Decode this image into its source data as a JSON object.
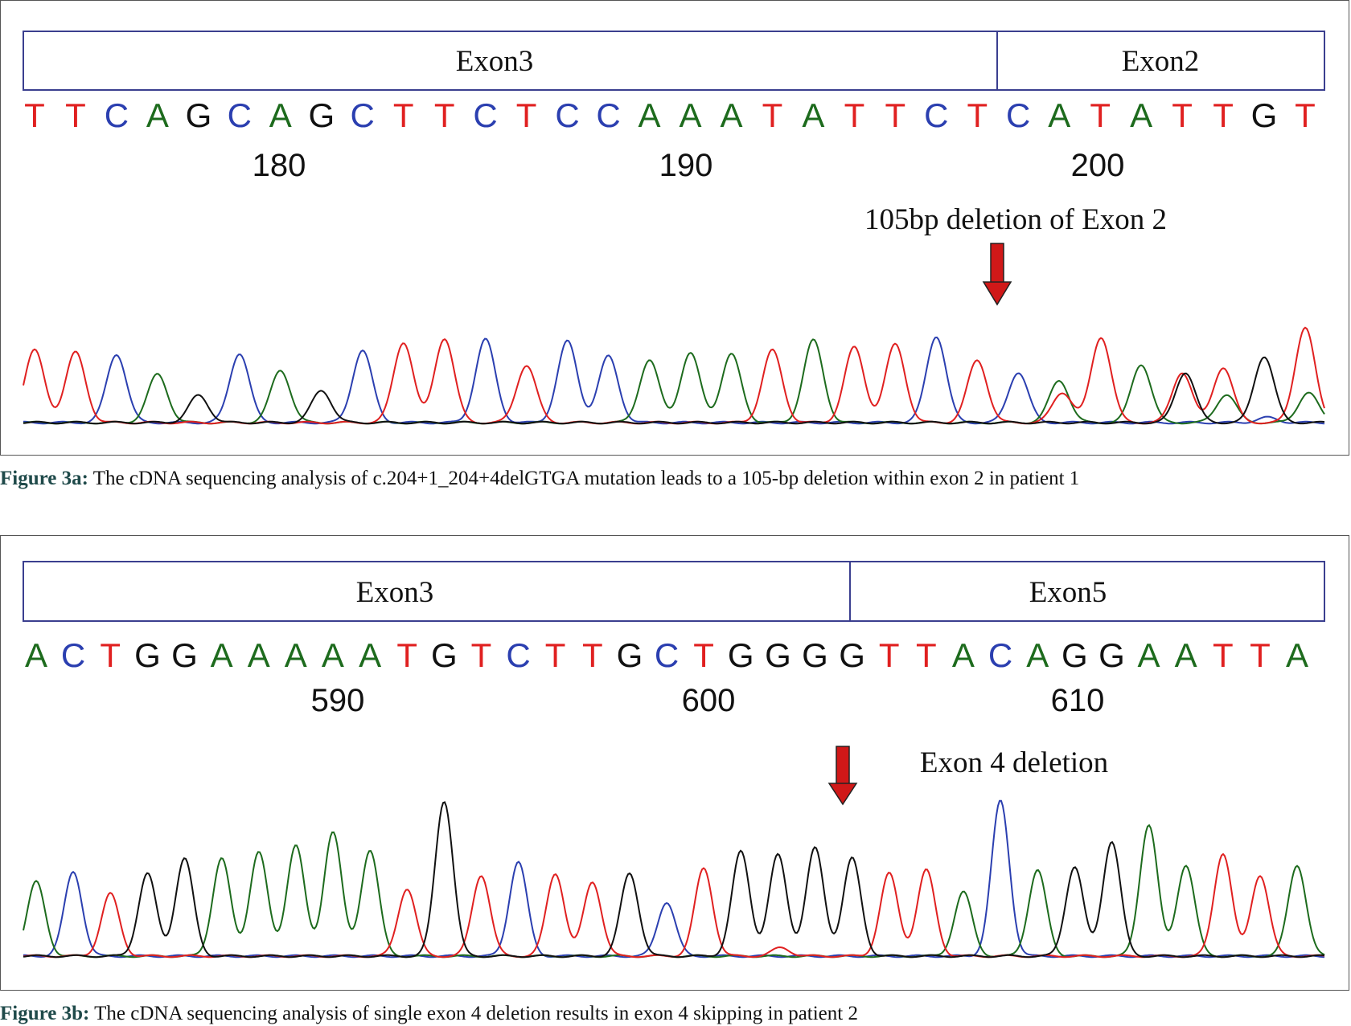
{
  "colors": {
    "A": "#1d6b1d",
    "C": "#2b3fb0",
    "G": "#111111",
    "T": "#e02020",
    "arrow": "#d01818"
  },
  "panels": [
    {
      "id": "a",
      "exons": [
        "Exon3",
        "Exon2"
      ],
      "sequence": "TTCAGCAGCTTCTCCAAATATTCTCATATTGT",
      "positions": [
        "180",
        "190",
        "200"
      ],
      "annotation": "105bp deletion of Exon 2",
      "caption_label": "Figure 3a:",
      "caption_text": " The cDNA sequencing analysis of c.204+1_204+4delGTGA mutation leads to a 105-bp deletion within exon 2 in patient 1"
    },
    {
      "id": "b",
      "exons": [
        "Exon3",
        "Exon5"
      ],
      "sequence": "ACTGGAAAAATGTCTTGCTGGGGTTACAGGAATTA",
      "positions": [
        "590",
        "600",
        "610"
      ],
      "annotation": "Exon 4 deletion",
      "caption_label": "Figure 3b:",
      "caption_text": " The cDNA sequencing analysis of single exon 4 deletion results in exon 4 skipping in patient 2"
    }
  ]
}
